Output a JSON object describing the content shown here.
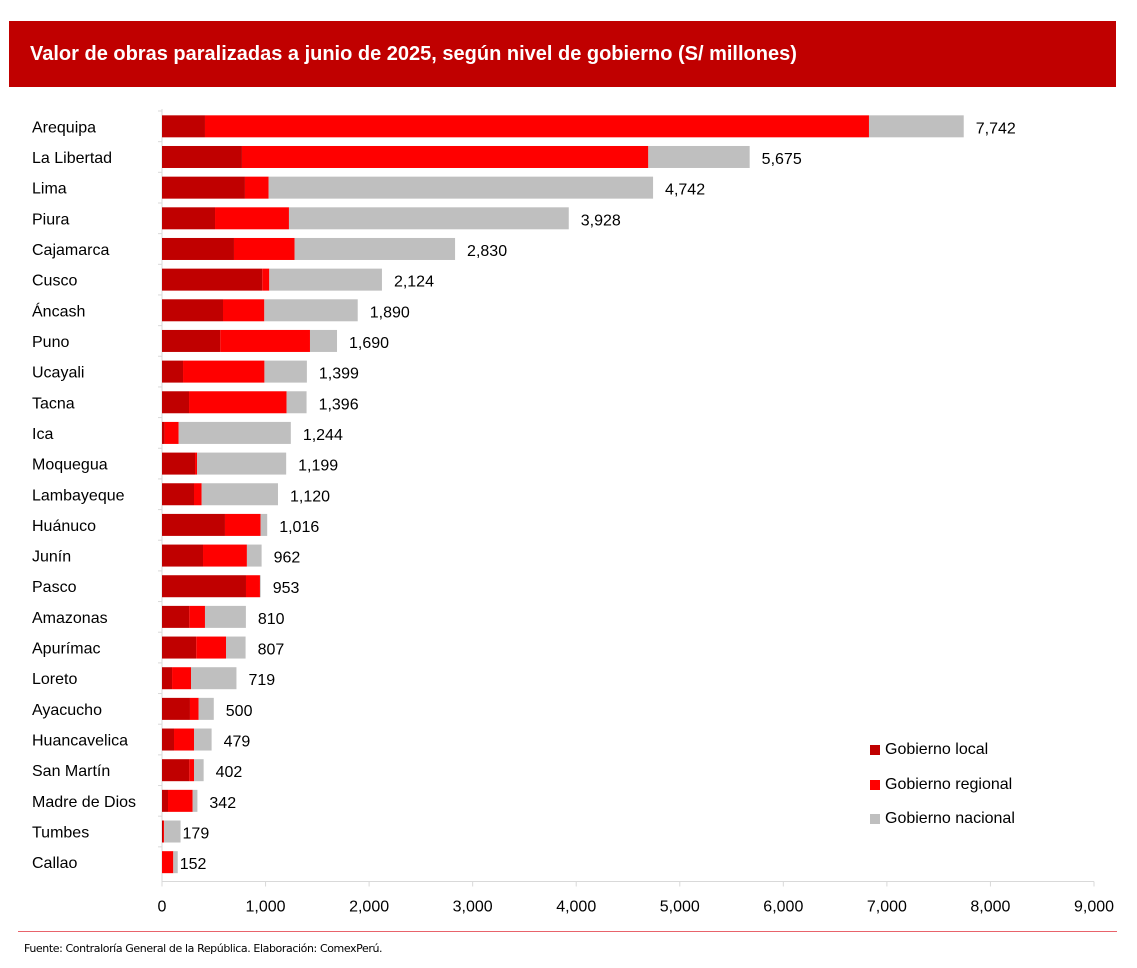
{
  "chart_data": {
    "type": "bar",
    "orientation": "horizontal",
    "stacked": true,
    "title": "Valor de obras paralizadas a junio de 2025, según nivel de gobierno (S/ millones)",
    "xlabel": "",
    "ylabel": "",
    "xlim": [
      0,
      9000
    ],
    "xticks": [
      0,
      1000,
      2000,
      3000,
      4000,
      5000,
      6000,
      7000,
      8000,
      9000
    ],
    "xtick_labels": [
      "0",
      "1,000",
      "2,000",
      "3,000",
      "4,000",
      "5,000",
      "6,000",
      "7,000",
      "8,000",
      "9,000"
    ],
    "grid": false,
    "legend_position": "bottom-right",
    "categories": [
      "Arequipa",
      "La Libertad",
      "Lima",
      "Piura",
      "Cajamarca",
      "Cusco",
      "Áncash",
      "Puno",
      "Ucayali",
      "Tacna",
      "Ica",
      "Moquegua",
      "Lambayeque",
      "Huánuco",
      "Junín",
      "Pasco",
      "Amazonas",
      "Apurímac",
      "Loreto",
      "Ayacucho",
      "Huancavelica",
      "San Martín",
      "Madre de Dios",
      "Tumbes",
      "Callao"
    ],
    "series": [
      {
        "name": "Gobierno local",
        "color": "#c00000",
        "values": [
          415,
          772,
          801,
          512,
          695,
          968,
          589,
          563,
          203,
          261,
          25,
          319,
          309,
          608,
          396,
          811,
          264,
          331,
          97,
          270,
          116,
          264,
          58,
          10,
          0
        ]
      },
      {
        "name": "Gobierno regional",
        "color": "#ff0000",
        "values": [
          6412,
          3924,
          229,
          714,
          586,
          68,
          399,
          866,
          786,
          942,
          136,
          19,
          74,
          344,
          424,
          135,
          151,
          287,
          183,
          84,
          193,
          45,
          238,
          10,
          109
        ]
      },
      {
        "name": "Gobierno nacional",
        "color": "#bfbfbf",
        "values": [
          915,
          979,
          3712,
          2702,
          1549,
          1088,
          902,
          261,
          410,
          193,
          1083,
          861,
          737,
          64,
          142,
          7,
          395,
          189,
          439,
          146,
          170,
          93,
          46,
          159,
          43
        ]
      }
    ],
    "totals": [
      7742,
      5675,
      4742,
      3928,
      2830,
      2124,
      1890,
      1690,
      1399,
      1396,
      1244,
      1199,
      1120,
      1016,
      962,
      953,
      810,
      807,
      719,
      500,
      479,
      402,
      342,
      179,
      152
    ],
    "total_labels": [
      "7,742",
      "5,675",
      "4,742",
      "3,928",
      "2,830",
      "2,124",
      "1,890",
      "1,690",
      "1,399",
      "1,396",
      "1,244",
      "1,199",
      "1,120",
      "1,016",
      "962",
      "953",
      "810",
      "807",
      "719",
      "500",
      "479",
      "402",
      "342",
      "179",
      "152"
    ]
  },
  "legend": [
    {
      "label": "Gobierno local",
      "color": "#c00000"
    },
    {
      "label": "Gobierno regional",
      "color": "#ff0000"
    },
    {
      "label": "Gobierno nacional",
      "color": "#bfbfbf"
    }
  ],
  "footer": {
    "source": "Fuente: Contraloría General de la República. Elaboración: ComexPerú."
  }
}
